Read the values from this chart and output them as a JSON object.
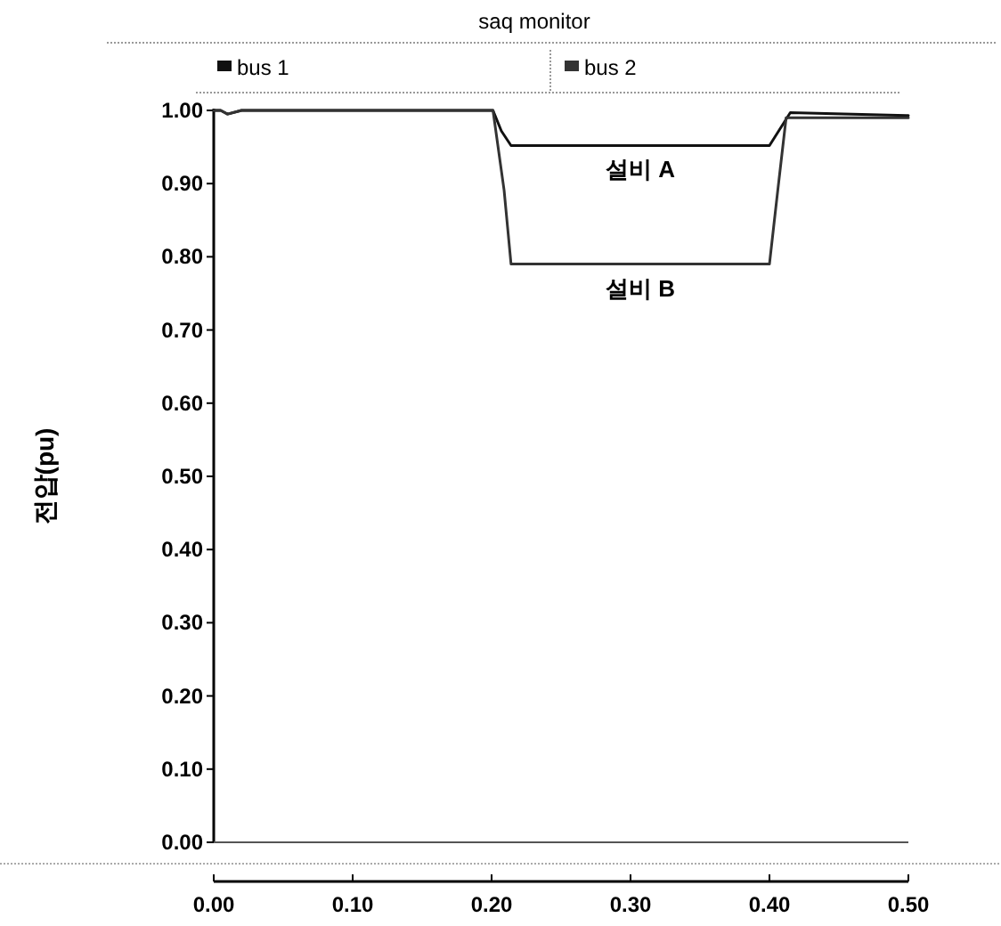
{
  "chart_data": {
    "type": "line",
    "title": "saq monitor",
    "ylabel": "전압(pu)",
    "legend": "top",
    "marker": "none",
    "line_style": "solid",
    "grid": false,
    "xlim": [
      0,
      0.5
    ],
    "ylim": [
      0,
      1
    ],
    "xticks": [
      {
        "value": 0,
        "label": "0.00"
      },
      {
        "value": 0.1,
        "label": "0.10"
      },
      {
        "value": 0.2,
        "label": "0.20"
      },
      {
        "value": 0.3,
        "label": "0.30"
      },
      {
        "value": 0.4,
        "label": "0.40"
      },
      {
        "value": 0.5,
        "label": "0.50"
      }
    ],
    "yticks": [
      {
        "value": 0,
        "label": "0.00"
      },
      {
        "value": 0.1,
        "label": "0.10"
      },
      {
        "value": 0.2,
        "label": "0.20"
      },
      {
        "value": 0.3,
        "label": "0.30"
      },
      {
        "value": 0.4,
        "label": "0.40"
      },
      {
        "value": 0.5,
        "label": "0.50"
      },
      {
        "value": 0.6,
        "label": "0.60"
      },
      {
        "value": 0.7,
        "label": "0.70"
      },
      {
        "value": 0.8,
        "label": "0.80"
      },
      {
        "value": 0.9,
        "label": "0.90"
      },
      {
        "value": 1,
        "label": "1.00"
      }
    ],
    "series": [
      {
        "name": "bus 1",
        "color": "#111111",
        "x": [
          0,
          0.005,
          0.01,
          0.02,
          0.201,
          0.207,
          0.214,
          0.4,
          0.415,
          0.5
        ],
        "values": [
          1,
          1,
          0.995,
          1,
          1,
          0.972,
          0.952,
          0.952,
          0.997,
          0.993
        ]
      },
      {
        "name": "bus 2",
        "color": "#333333",
        "x": [
          0,
          0.005,
          0.01,
          0.02,
          0.201,
          0.209,
          0.214,
          0.4,
          0.406,
          0.412,
          0.5
        ],
        "values": [
          1,
          1,
          0.995,
          1,
          1,
          0.891,
          0.79,
          0.79,
          0.891,
          0.99,
          0.99
        ]
      }
    ],
    "ref_lines": [
      {
        "axis": "y",
        "value": 0,
        "color": "#555555"
      }
    ],
    "annotations": [
      "설비 A",
      "설비 B"
    ]
  }
}
